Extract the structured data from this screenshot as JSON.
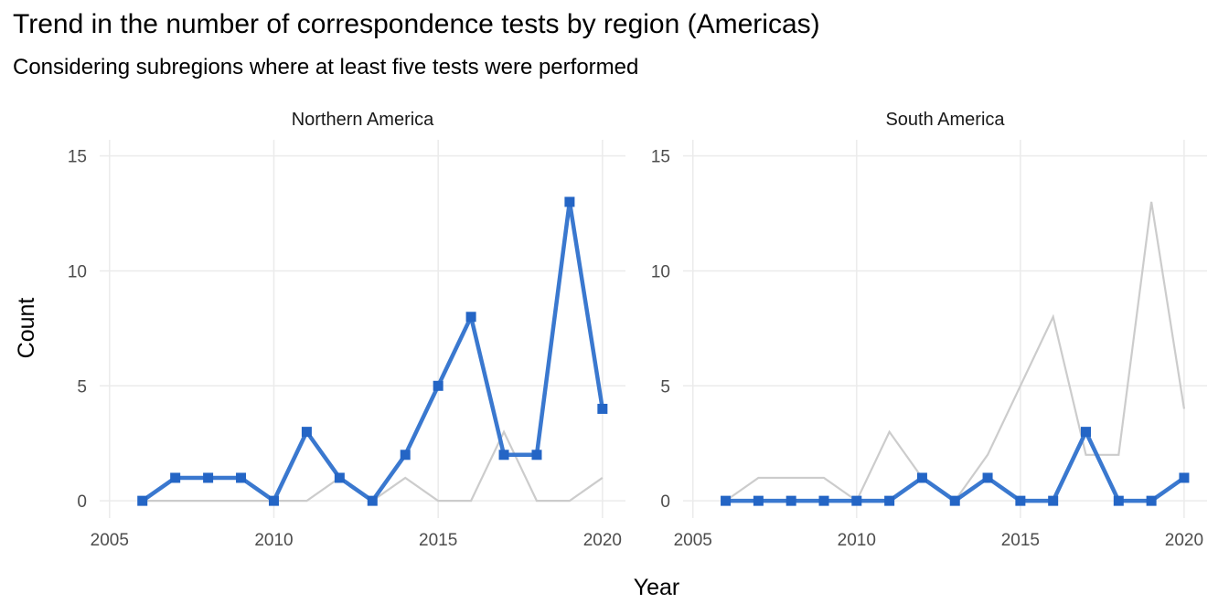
{
  "title": "Trend in the number of correspondence tests by region (Americas)",
  "subtitle": "Considering subregions where at least five tests were performed",
  "colors": {
    "highlight": "#2465c5",
    "background_series": "#cccccc",
    "grid": "#ebebeb"
  },
  "chart_data": {
    "type": "line",
    "xlabel": "Year",
    "ylabel": "Count",
    "xlim": [
      2004.7,
      2020.7
    ],
    "ylim": [
      -0.75,
      15.7
    ],
    "x_ticks": [
      2005,
      2010,
      2015,
      2020
    ],
    "y_ticks": [
      0,
      5,
      10,
      15
    ],
    "x_tick_labels": [
      "2005",
      "2010",
      "2015",
      "2020"
    ],
    "y_tick_labels": [
      "0",
      "5",
      "10",
      "15"
    ],
    "grid": true,
    "x": [
      2006,
      2007,
      2008,
      2009,
      2010,
      2011,
      2012,
      2013,
      2014,
      2015,
      2016,
      2017,
      2018,
      2019,
      2020
    ],
    "panels": [
      {
        "name": "Northern America",
        "highlight_series": "Northern America",
        "background_series": "South America"
      },
      {
        "name": "South America",
        "highlight_series": "South America",
        "background_series": "Northern America"
      }
    ],
    "series": [
      {
        "name": "Northern America",
        "values": [
          0,
          1,
          1,
          1,
          0,
          3,
          1,
          0,
          2,
          5,
          8,
          2,
          2,
          13,
          4
        ]
      },
      {
        "name": "South America",
        "values": [
          0,
          0,
          0,
          0,
          0,
          0,
          1,
          0,
          1,
          0,
          0,
          3,
          0,
          0,
          1
        ]
      }
    ]
  }
}
